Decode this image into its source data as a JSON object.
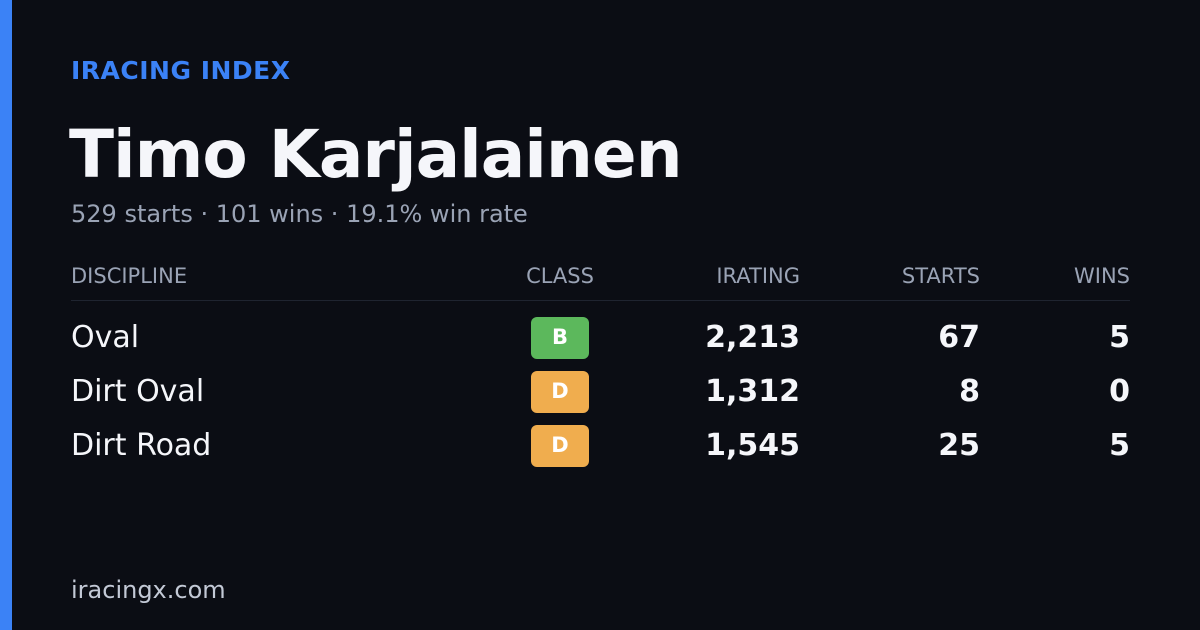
{
  "brand": "IRACING INDEX",
  "name": "Timo Karjalainen",
  "summary": "529 starts · 101 wins · 19.1% win rate",
  "table": {
    "headers": [
      "DISCIPLINE",
      "CLASS",
      "IRATING",
      "STARTS",
      "WINS"
    ],
    "rows": [
      {
        "discipline": "Oval",
        "class": "B",
        "class_color": "#5cb85c",
        "irating": "2,213",
        "starts": "67",
        "wins": "5"
      },
      {
        "discipline": "Dirt Oval",
        "class": "D",
        "class_color": "#f0ad4e",
        "irating": "1,312",
        "starts": "8",
        "wins": "0"
      },
      {
        "discipline": "Dirt Road",
        "class": "D",
        "class_color": "#f0ad4e",
        "irating": "1,545",
        "starts": "25",
        "wins": "5"
      }
    ]
  },
  "footer": "iracingx.com"
}
